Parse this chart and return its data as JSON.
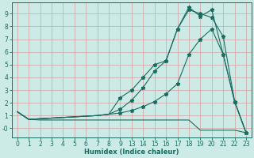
{
  "xlabel": "Humidex (Indice chaleur)",
  "background_color": "#cceae6",
  "grid_color": "#d4a0a0",
  "line_color": "#1a6b60",
  "xtick_labels": [
    "0",
    "1",
    "2",
    "3",
    "4",
    "5",
    "6",
    "7",
    "8",
    "9",
    "13",
    "14",
    "15",
    "16",
    "17",
    "18",
    "19",
    "20",
    "21",
    "22",
    "23"
  ],
  "line1_x": [
    0,
    1,
    2,
    3,
    4,
    5,
    6,
    7,
    8,
    9,
    10,
    11,
    12,
    13,
    14,
    15,
    16,
    17,
    18,
    19,
    20
  ],
  "line1_y": [
    1.3,
    0.7,
    0.65,
    0.65,
    0.65,
    0.65,
    0.65,
    0.65,
    0.65,
    0.65,
    0.65,
    0.65,
    0.65,
    0.65,
    0.65,
    0.65,
    -0.15,
    -0.15,
    -0.15,
    -0.15,
    -0.35
  ],
  "line2_x": [
    0,
    1,
    2,
    3,
    4,
    5,
    6,
    7,
    8,
    9,
    10,
    11,
    12,
    13,
    14,
    15,
    16,
    17,
    18,
    19,
    20
  ],
  "line2_y": [
    1.3,
    0.7,
    0.75,
    0.8,
    0.85,
    0.9,
    0.95,
    1.0,
    1.1,
    1.2,
    1.4,
    1.7,
    2.1,
    2.7,
    3.5,
    5.8,
    7.0,
    7.8,
    5.8,
    2.1,
    -0.35
  ],
  "line3_x": [
    0,
    1,
    2,
    3,
    4,
    5,
    6,
    7,
    8,
    9,
    10,
    11,
    12,
    13,
    14,
    15,
    16,
    17,
    18,
    19,
    20
  ],
  "line3_y": [
    1.3,
    0.7,
    0.75,
    0.8,
    0.85,
    0.9,
    0.95,
    1.0,
    1.1,
    1.5,
    2.2,
    3.2,
    4.5,
    5.3,
    7.8,
    9.3,
    9.0,
    8.7,
    7.2,
    2.1,
    -0.35
  ],
  "line4_x": [
    0,
    1,
    2,
    3,
    4,
    5,
    6,
    7,
    8,
    9,
    10,
    11,
    12,
    13,
    14,
    15,
    16,
    17,
    18,
    19,
    20
  ],
  "line4_y": [
    1.3,
    0.7,
    0.75,
    0.8,
    0.85,
    0.9,
    0.95,
    1.0,
    1.1,
    2.4,
    3.0,
    4.0,
    5.0,
    5.3,
    7.8,
    9.5,
    8.8,
    9.3,
    5.8,
    2.1,
    -0.35
  ],
  "ylim": [
    -0.7,
    9.9
  ],
  "yticks": [
    0,
    1,
    2,
    3,
    4,
    5,
    6,
    7,
    8,
    9
  ],
  "ytick_labels": [
    "-0",
    "1",
    "2",
    "3",
    "4",
    "5",
    "6",
    "7",
    "8",
    "9"
  ]
}
